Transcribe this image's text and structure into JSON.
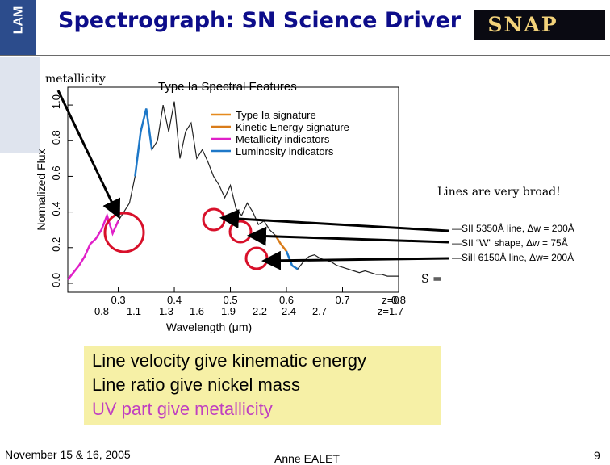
{
  "slide": {
    "title": "Spectrograph: SN Science Driver",
    "logo_snap": "SNAP",
    "logo_lam": "LAM",
    "metallicity_label": "metallicity",
    "broad_note": "Lines are very broad!",
    "s_eq": "S =",
    "line_annotations": [
      "—SII 5350Å line, Δw = 200Å",
      "—SII “W” shape, Δw = 75Å",
      "—SiII 6150Å line, Δw= 200Å"
    ],
    "conclusions": [
      "Line velocity  give kinematic energy",
      "Line ratio give nickel mass",
      "UV part give metallicity"
    ],
    "footer_date": "November 15 & 16, 2005",
    "footer_author": "Anne EALET",
    "footer_page": "9"
  },
  "colors": {
    "title": "#0d0d8a",
    "type_ia": "#e58a1e",
    "kinetic": "#d97c1a",
    "metallicity": "#e020c8",
    "luminosity": "#1e78c8",
    "highlight_circle": "#d8102a",
    "uv_text": "#c040c0"
  },
  "chart_data": {
    "type": "line",
    "title": "Type Ia Spectral Features",
    "xlabel": "Wavelength (μm)",
    "ylabel": "Normalized Flux",
    "xlim": [
      0.21,
      0.8
    ],
    "ylim": [
      -0.05,
      1.1
    ],
    "x_ticks_z0": [
      "0.3",
      "0.4",
      "0.5",
      "0.6",
      "0.7",
      "0.8",
      "z=0"
    ],
    "x_ticks_z17": [
      "0.8",
      "1.1",
      "1.3",
      "1.6",
      "1.9",
      "2.2",
      "2.4",
      "2.7",
      "z=1.7"
    ],
    "y_ticks": [
      "0.0",
      "0.2",
      "0.4",
      "0.6",
      "0.8",
      "1.0"
    ],
    "legend_position": "top-right",
    "legend": [
      {
        "name": "Type Ia signature",
        "color": "#e58a1e"
      },
      {
        "name": "Kinetic Energy signature",
        "color": "#d97c1a"
      },
      {
        "name": "Metallicity indicators",
        "color": "#e020c8"
      },
      {
        "name": "Luminosity indicators",
        "color": "#1e78c8"
      }
    ],
    "series": [
      {
        "x": [
          0.21,
          0.22,
          0.23,
          0.24,
          0.25,
          0.26,
          0.27,
          0.28,
          0.29,
          0.3,
          0.31,
          0.32,
          0.33,
          0.34,
          0.35,
          0.36,
          0.37,
          0.38,
          0.39,
          0.4,
          0.41,
          0.42,
          0.43,
          0.44,
          0.45,
          0.46,
          0.47,
          0.48,
          0.49,
          0.5,
          0.51,
          0.52,
          0.53,
          0.54,
          0.55,
          0.56,
          0.57,
          0.58,
          0.59,
          0.6,
          0.61,
          0.62,
          0.63,
          0.64,
          0.65,
          0.66,
          0.67,
          0.68,
          0.69,
          0.7,
          0.71,
          0.72,
          0.73,
          0.74,
          0.75,
          0.76,
          0.77,
          0.78,
          0.79,
          0.8
        ],
        "y": [
          0.02,
          0.06,
          0.1,
          0.15,
          0.22,
          0.25,
          0.3,
          0.38,
          0.28,
          0.35,
          0.4,
          0.45,
          0.6,
          0.85,
          0.98,
          0.75,
          0.8,
          1.0,
          0.85,
          1.02,
          0.7,
          0.85,
          0.9,
          0.7,
          0.75,
          0.68,
          0.6,
          0.55,
          0.48,
          0.55,
          0.42,
          0.38,
          0.45,
          0.4,
          0.33,
          0.35,
          0.3,
          0.27,
          0.22,
          0.18,
          0.1,
          0.08,
          0.12,
          0.15,
          0.16,
          0.14,
          0.13,
          0.12,
          0.1,
          0.09,
          0.08,
          0.07,
          0.06,
          0.07,
          0.06,
          0.05,
          0.05,
          0.04,
          0.04,
          0.04
        ],
        "segment_colors": {
          "metallicity": [
            0.21,
            0.3
          ],
          "luminosity": [
            [
              0.33,
              0.36
            ],
            [
              0.6,
              0.62
            ]
          ],
          "kinetic": [
            [
              0.58,
              0.6
            ]
          ]
        }
      }
    ]
  }
}
